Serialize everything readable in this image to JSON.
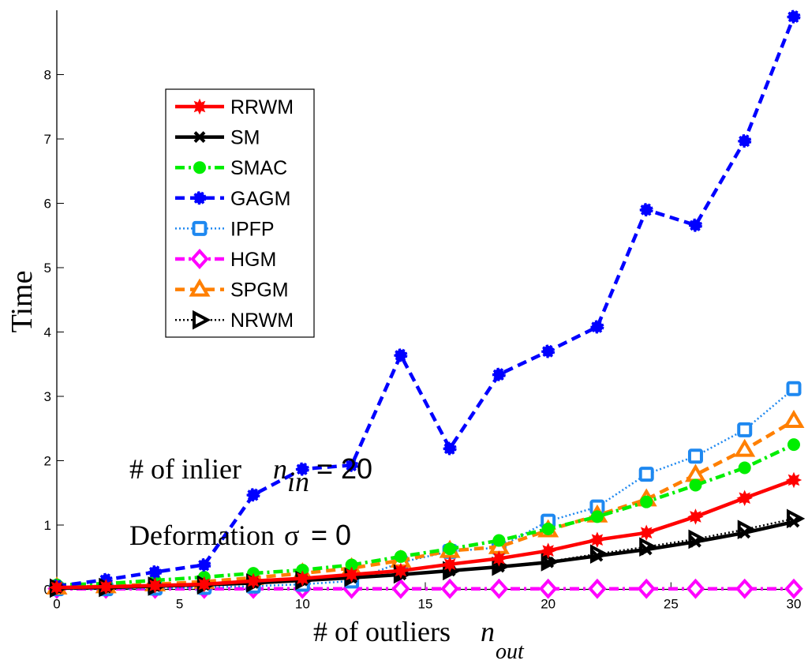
{
  "chart_data": {
    "type": "line",
    "title": "",
    "xlabel": "# of outliers",
    "xlabel_symbol": "n",
    "xlabel_subscript": "out",
    "ylabel": "Time",
    "xlim": [
      0,
      30
    ],
    "ylim": [
      0,
      9
    ],
    "xticks": [
      0,
      5,
      10,
      15,
      20,
      25,
      30
    ],
    "yticks": [
      0,
      1,
      2,
      3,
      4,
      5,
      6,
      7,
      8
    ],
    "grid": false,
    "legend_position": "upper-left",
    "x": [
      0,
      2,
      4,
      6,
      8,
      10,
      12,
      14,
      16,
      18,
      20,
      22,
      24,
      26,
      28,
      30
    ],
    "series": [
      {
        "name": "RRWM",
        "color": "#ff0000",
        "line_style": "solid",
        "marker": "star",
        "values": [
          0.03,
          0.04,
          0.06,
          0.08,
          0.13,
          0.17,
          0.23,
          0.29,
          0.39,
          0.48,
          0.6,
          0.77,
          0.88,
          1.13,
          1.42,
          1.7
        ]
      },
      {
        "name": "SM",
        "color": "#000000",
        "line_style": "solid",
        "marker": "x",
        "values": [
          0.02,
          0.03,
          0.05,
          0.07,
          0.1,
          0.14,
          0.18,
          0.23,
          0.29,
          0.35,
          0.42,
          0.52,
          0.62,
          0.74,
          0.88,
          1.05
        ]
      },
      {
        "name": "SMAC",
        "color": "#00ee00",
        "line_style": "dashdot",
        "marker": "circle",
        "values": [
          0.07,
          0.09,
          0.14,
          0.19,
          0.25,
          0.3,
          0.38,
          0.51,
          0.63,
          0.76,
          0.94,
          1.13,
          1.36,
          1.62,
          1.89,
          2.25
        ]
      },
      {
        "name": "GAGM",
        "color": "#0000ff",
        "line_style": "dashed",
        "marker": "star-circle",
        "values": [
          0.05,
          0.15,
          0.27,
          0.38,
          1.47,
          1.87,
          1.93,
          3.64,
          2.19,
          3.34,
          3.7,
          4.08,
          5.9,
          5.66,
          6.97,
          8.9
        ]
      },
      {
        "name": "IPFP",
        "color": "#1e88f0",
        "line_style": "dotted",
        "marker": "square",
        "values": [
          0.01,
          0.01,
          0.02,
          0.03,
          0.05,
          0.08,
          0.13,
          0.42,
          0.59,
          0.65,
          1.06,
          1.28,
          1.79,
          2.07,
          2.48,
          3.12
        ]
      },
      {
        "name": "HGM",
        "color": "#ff00ff",
        "line_style": "dashdot",
        "marker": "diamond",
        "values": [
          0.01,
          0.01,
          0.01,
          0.01,
          0.01,
          0.01,
          0.01,
          0.01,
          0.01,
          0.01,
          0.01,
          0.01,
          0.01,
          0.01,
          0.01,
          0.01
        ]
      },
      {
        "name": "SPGM",
        "color": "#ff7f00",
        "line_style": "dashed",
        "marker": "triangle-up",
        "values": [
          0.03,
          0.05,
          0.08,
          0.12,
          0.18,
          0.25,
          0.33,
          0.45,
          0.6,
          0.66,
          0.92,
          1.15,
          1.4,
          1.78,
          2.17,
          2.62
        ]
      },
      {
        "name": "NRWM",
        "color": "#000000",
        "line_style": "dotted",
        "marker": "triangle-right",
        "values": [
          0.02,
          0.03,
          0.05,
          0.07,
          0.1,
          0.14,
          0.19,
          0.24,
          0.29,
          0.36,
          0.43,
          0.55,
          0.66,
          0.78,
          0.93,
          1.1
        ]
      }
    ],
    "annotations": [
      {
        "text": "# of inlier",
        "symbol": "n",
        "subscript": "in",
        "suffix": "= 20"
      },
      {
        "text": "Deformation",
        "symbol": "σ",
        "suffix": "= 0"
      }
    ]
  }
}
